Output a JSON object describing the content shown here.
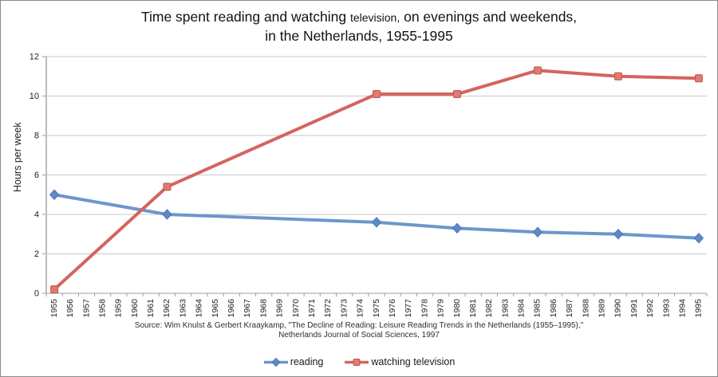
{
  "title": {
    "line1_seg1": "Time spent reading and watching ",
    "line1_seg2": "television,",
    "line1_seg3": " on evenings and weekends,",
    "line2": "in the Netherlands, 1955-1995"
  },
  "y_axis": {
    "label": "Hours per week"
  },
  "source": {
    "line1": "Source: Wim Knulst & Gerbert Kraaykamp, \"The Decline of Reading: Leisure Reading Trends in the Netherlands (1955–1995),\"",
    "line2": "Netherlands Journal of Social Sciences, 1997"
  },
  "legend": [
    {
      "label": "reading",
      "marker": "diamond",
      "line_color": "#6d96cd",
      "marker_fill": "#5e8ac6",
      "marker_stroke": "#4a78b4"
    },
    {
      "label": "watching television",
      "marker": "square",
      "line_color": "#d3655e",
      "marker_fill": "#e07a72",
      "marker_stroke": "#c4544d"
    }
  ],
  "chart_data": {
    "type": "line",
    "title": "Time spent reading and watching television, on evenings and weekends, in the Netherlands, 1955-1995",
    "xlabel": "",
    "ylabel": "Hours per week",
    "ylim": [
      0,
      12
    ],
    "y_ticks": [
      0,
      2,
      4,
      6,
      8,
      10,
      12
    ],
    "grid": true,
    "legend_position": "bottom",
    "x_tick_labels": [
      "1955",
      "1956",
      "1957",
      "1958",
      "1959",
      "1960",
      "1961",
      "1962",
      "1963",
      "1964",
      "1965",
      "1966",
      "1967",
      "1968",
      "1969",
      "1970",
      "1971",
      "1972",
      "1973",
      "1974",
      "1975",
      "1976",
      "1977",
      "1978",
      "1979",
      "1980",
      "1981",
      "1982",
      "1983",
      "1984",
      "1985",
      "1986",
      "1987",
      "1988",
      "1989",
      "1990",
      "1991",
      "1992",
      "1993",
      "1994",
      "1995"
    ],
    "x": [
      1955,
      1962,
      1975,
      1980,
      1985,
      1990,
      1995
    ],
    "series": [
      {
        "name": "reading",
        "values": [
          5.0,
          4.0,
          3.6,
          3.3,
          3.1,
          3.0,
          2.8
        ],
        "line_color": "#6d96cd",
        "marker": "diamond",
        "marker_fill": "#5e8ac6",
        "marker_stroke": "#4a78b4"
      },
      {
        "name": "watching television",
        "values": [
          0.2,
          5.4,
          10.1,
          10.1,
          11.3,
          11.0,
          10.9
        ],
        "line_color": "#d3655e",
        "marker": "square",
        "marker_fill": "#e07a72",
        "marker_stroke": "#c4544d"
      }
    ],
    "colors": {
      "gridline": "#c9c9c9",
      "axis": "#9e9e9e",
      "y_axis_line": "#bdbdbd",
      "tick_text": "#1f1f1f"
    }
  }
}
